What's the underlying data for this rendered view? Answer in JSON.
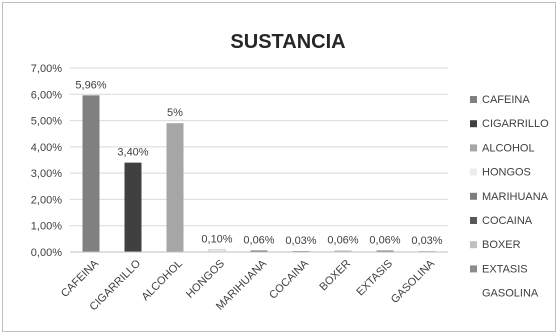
{
  "chart_data": {
    "type": "bar",
    "title": "SUSTANCIA",
    "xlabel": "",
    "ylabel": "",
    "categories": [
      "CAFEINA",
      "CIGARRILLO",
      "ALCOHOL",
      "HONGOS",
      "MARIHUANA",
      "COCAINA",
      "BOXER",
      "EXTASIS",
      "GASOLINA"
    ],
    "values": [
      5.96,
      3.4,
      4.9,
      0.1,
      0.06,
      0.03,
      0.06,
      0.06,
      0.03
    ],
    "data_labels": [
      "5,96%",
      "3,40%",
      "5%",
      "0,10%",
      "0,06%",
      "0,03%",
      "0,06%",
      "0,06%",
      "0,03%"
    ],
    "colors": [
      "#808080",
      "#404040",
      "#a6a6a6",
      "#ededed",
      "#7f7f7f",
      "#595959",
      "#bfbfbf",
      "#8c8c8c",
      "#ffffff"
    ],
    "ylim": [
      0,
      7
    ],
    "y_ticks": [
      0,
      1,
      2,
      3,
      4,
      5,
      6,
      7
    ],
    "y_tick_labels": [
      "0,00%",
      "1,00%",
      "2,00%",
      "3,00%",
      "4,00%",
      "5,00%",
      "6,00%",
      "7,00%"
    ],
    "grid": true,
    "legend": {
      "position": "right",
      "entries": [
        "CAFEINA",
        "CIGARRILLO",
        "ALCOHOL",
        "HONGOS",
        "MARIHUANA",
        "COCAINA",
        "BOXER",
        "EXTASIS",
        "GASOLINA"
      ]
    }
  }
}
